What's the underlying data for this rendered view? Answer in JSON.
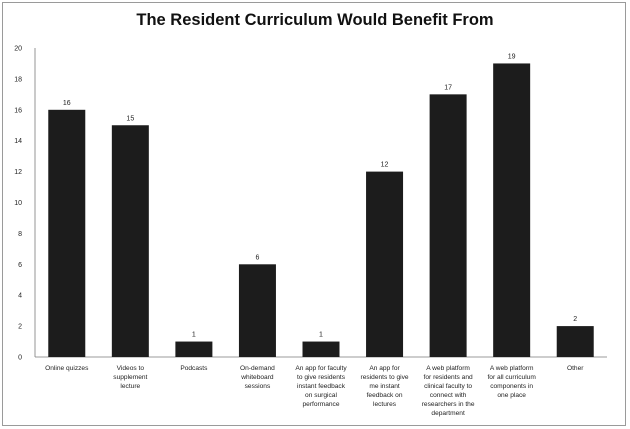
{
  "chart_data": {
    "type": "bar",
    "title": "The Resident Curriculum Would Benefit From",
    "xlabel": "",
    "ylabel": "",
    "ylim": [
      0,
      20
    ],
    "yticks": [
      0,
      2,
      4,
      6,
      8,
      10,
      12,
      14,
      16,
      18,
      20
    ],
    "grid": false,
    "legend": "none",
    "bar_color": "#1c1c1c",
    "categories": [
      "Online quizzes",
      "Videos to supplement lecture",
      "Podcasts",
      "On-demand whiteboard sessions",
      "An app for faculty to give residents instant feedback on surgical performance",
      "An app for residents to give me instant feedback on lectures",
      "A web platform for residents and clinical faculty to connect with researchers in the department",
      "A web platform for all curriculum components in one place",
      "Other"
    ],
    "category_lines": [
      [
        "Online quizzes"
      ],
      [
        "Videos to",
        "supplement",
        "lecture"
      ],
      [
        "Podcasts"
      ],
      [
        "On-demand",
        "whiteboard",
        "sessions"
      ],
      [
        "An app for faculty",
        "to give residents",
        "instant feedback",
        "on surgical",
        "performance"
      ],
      [
        "An app for",
        "residents to give",
        "me instant",
        "feedback on",
        "lectures"
      ],
      [
        "A web platform",
        "for residents and",
        "clinical faculty to",
        "connect with",
        "researchers in the",
        "department"
      ],
      [
        "A web platform",
        "for all curriculum",
        "components in",
        "one place"
      ],
      [
        "Other"
      ]
    ],
    "values": [
      16,
      15,
      1,
      6,
      1,
      12,
      17,
      19,
      2
    ]
  }
}
